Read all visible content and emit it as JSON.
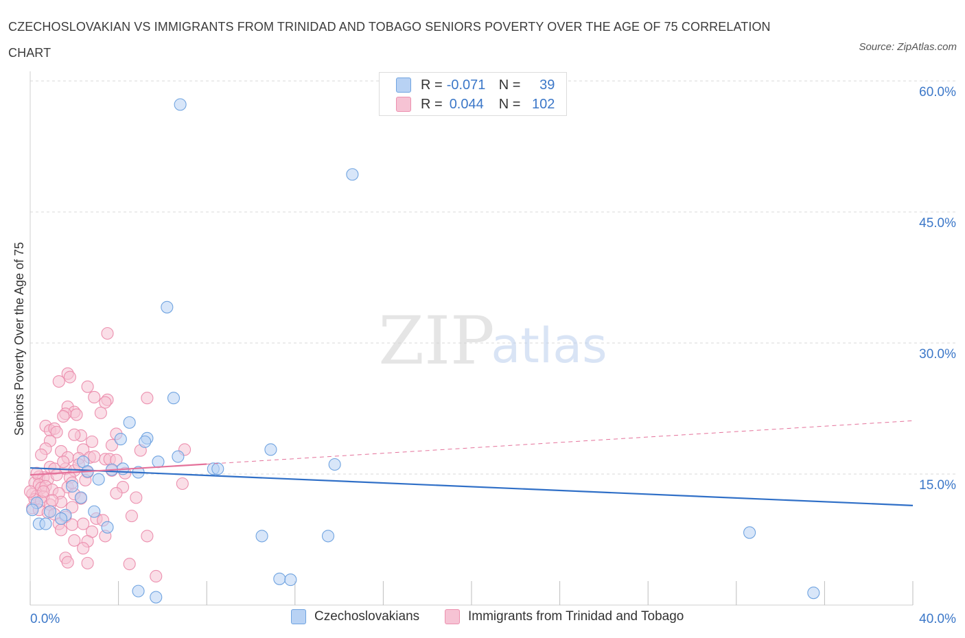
{
  "title": "CZECHOSLOVAKIAN VS IMMIGRANTS FROM TRINIDAD AND TOBAGO SENIORS POVERTY OVER THE AGE OF 75 CORRELATION CHART",
  "source": "Source: ZipAtlas.com",
  "watermark": {
    "zip": "ZIP",
    "atlas": "atlas"
  },
  "legend": {
    "row1": {
      "r_label": "R =",
      "r_value": "-0.071",
      "n_label": "N =",
      "n_value": "39"
    },
    "row2": {
      "r_label": "R =",
      "r_value": "0.044",
      "n_label": "N =",
      "n_value": "102"
    }
  },
  "colors": {
    "blue": "#6fa3e0",
    "blue_fill": "#b8d2f4",
    "blue_line": "#2f6fc7",
    "pink": "#ec8fae",
    "pink_fill": "#f6c3d4",
    "pink_line": "#e4719a",
    "axis_label": "#3b77c8"
  },
  "chart_data": {
    "type": "scatter",
    "xlabel": "",
    "ylabel": "Seniors Poverty Over the Age of 75",
    "xlim": [
      0,
      40
    ],
    "ylim": [
      0,
      60
    ],
    "x_tick_labels": [
      "0.0%",
      "40.0%"
    ],
    "y_ticks": [
      15,
      30,
      45,
      60
    ],
    "y_tick_labels": [
      "15.0%",
      "30.0%",
      "45.0%",
      "60.0%"
    ],
    "series": [
      {
        "name": "Czechoslovakians",
        "r": -0.071,
        "n": 39,
        "trend": {
          "x0": 0,
          "y0": 15.7,
          "x1": 40,
          "y1": 11.4,
          "dashed_from": null
        },
        "points": [
          [
            6.8,
            57.3
          ],
          [
            14.6,
            49.3
          ],
          [
            6.2,
            34.1
          ],
          [
            6.5,
            23.7
          ],
          [
            4.5,
            20.9
          ],
          [
            4.1,
            19.0
          ],
          [
            5.3,
            19.1
          ],
          [
            5.2,
            18.7
          ],
          [
            6.7,
            17.0
          ],
          [
            10.9,
            17.8
          ],
          [
            5.8,
            16.4
          ],
          [
            2.4,
            16.4
          ],
          [
            4.2,
            15.6
          ],
          [
            4.9,
            15.2
          ],
          [
            3.7,
            15.5
          ],
          [
            8.3,
            15.6
          ],
          [
            8.5,
            15.6
          ],
          [
            13.8,
            16.1
          ],
          [
            2.6,
            15.3
          ],
          [
            3.1,
            14.4
          ],
          [
            1.9,
            13.6
          ],
          [
            2.3,
            12.3
          ],
          [
            0.3,
            11.7
          ],
          [
            1.6,
            10.3
          ],
          [
            0.1,
            10.9
          ],
          [
            0.9,
            10.7
          ],
          [
            1.4,
            9.9
          ],
          [
            2.9,
            10.7
          ],
          [
            0.4,
            9.3
          ],
          [
            0.7,
            9.3
          ],
          [
            3.5,
            8.9
          ],
          [
            10.5,
            7.9
          ],
          [
            13.5,
            7.9
          ],
          [
            32.6,
            8.3
          ],
          [
            11.3,
            3.0
          ],
          [
            11.8,
            2.9
          ],
          [
            4.9,
            1.6
          ],
          [
            5.7,
            0.9
          ],
          [
            35.5,
            1.4
          ]
        ]
      },
      {
        "name": "Immigrants from Trinidad and Tobago",
        "r": 0.044,
        "n": 102,
        "trend": {
          "x0": 0,
          "y0": 14.9,
          "x1": 40,
          "y1": 21.1,
          "dashed_from": 8.0
        },
        "points": [
          [
            3.5,
            31.1
          ],
          [
            1.7,
            26.5
          ],
          [
            1.8,
            26.1
          ],
          [
            1.3,
            25.6
          ],
          [
            2.6,
            25.0
          ],
          [
            5.3,
            23.7
          ],
          [
            2.9,
            23.8
          ],
          [
            3.5,
            23.5
          ],
          [
            3.4,
            23.2
          ],
          [
            1.7,
            22.7
          ],
          [
            2.0,
            22.1
          ],
          [
            1.6,
            21.9
          ],
          [
            3.2,
            22.0
          ],
          [
            1.5,
            21.6
          ],
          [
            2.1,
            21.8
          ],
          [
            0.7,
            20.5
          ],
          [
            0.9,
            20.0
          ],
          [
            1.1,
            20.2
          ],
          [
            1.2,
            19.8
          ],
          [
            2.3,
            19.4
          ],
          [
            2.0,
            19.5
          ],
          [
            3.9,
            19.6
          ],
          [
            0.9,
            18.8
          ],
          [
            2.8,
            18.7
          ],
          [
            3.7,
            18.3
          ],
          [
            0.7,
            17.9
          ],
          [
            1.4,
            17.6
          ],
          [
            2.4,
            17.8
          ],
          [
            5.0,
            17.7
          ],
          [
            7.0,
            17.8
          ],
          [
            0.5,
            17.2
          ],
          [
            1.7,
            16.9
          ],
          [
            2.2,
            16.8
          ],
          [
            2.7,
            16.9
          ],
          [
            3.4,
            16.7
          ],
          [
            3.6,
            16.7
          ],
          [
            3.9,
            16.6
          ],
          [
            0.9,
            15.8
          ],
          [
            1.1,
            15.6
          ],
          [
            1.6,
            15.6
          ],
          [
            2.0,
            15.4
          ],
          [
            2.6,
            15.2
          ],
          [
            3.7,
            15.4
          ],
          [
            4.3,
            15.1
          ],
          [
            0.4,
            14.7
          ],
          [
            0.6,
            14.6
          ],
          [
            0.8,
            14.4
          ],
          [
            1.2,
            14.9
          ],
          [
            1.8,
            14.6
          ],
          [
            2.5,
            14.3
          ],
          [
            0.2,
            14.0
          ],
          [
            0.4,
            13.8
          ],
          [
            0.5,
            13.4
          ],
          [
            0.7,
            13.6
          ],
          [
            1.0,
            13.2
          ],
          [
            1.7,
            13.5
          ],
          [
            4.2,
            13.5
          ],
          [
            6.9,
            13.9
          ],
          [
            0.1,
            12.7
          ],
          [
            0.3,
            12.5
          ],
          [
            0.6,
            12.4
          ],
          [
            1.3,
            12.8
          ],
          [
            2.0,
            12.7
          ],
          [
            3.9,
            12.8
          ],
          [
            4.8,
            12.3
          ],
          [
            0.2,
            12.1
          ],
          [
            0.5,
            11.9
          ],
          [
            0.9,
            11.5
          ],
          [
            1.4,
            11.8
          ],
          [
            2.3,
            12.2
          ],
          [
            0.1,
            11.1
          ],
          [
            0.4,
            10.9
          ],
          [
            0.8,
            10.6
          ],
          [
            1.1,
            10.4
          ],
          [
            1.9,
            11.2
          ],
          [
            3.0,
            9.9
          ],
          [
            3.3,
            9.7
          ],
          [
            4.6,
            10.2
          ],
          [
            1.6,
            10.1
          ],
          [
            1.3,
            9.3
          ],
          [
            1.9,
            9.2
          ],
          [
            2.4,
            9.3
          ],
          [
            1.4,
            8.6
          ],
          [
            2.8,
            8.4
          ],
          [
            3.4,
            7.9
          ],
          [
            5.3,
            7.9
          ],
          [
            2.0,
            7.4
          ],
          [
            2.6,
            7.3
          ],
          [
            2.4,
            6.5
          ],
          [
            1.6,
            5.4
          ],
          [
            1.7,
            4.9
          ],
          [
            2.6,
            4.8
          ],
          [
            4.5,
            4.7
          ],
          [
            5.7,
            3.3
          ],
          [
            0.0,
            13.0
          ],
          [
            0.3,
            15.1
          ],
          [
            1.5,
            16.4
          ],
          [
            2.9,
            17.0
          ],
          [
            2.2,
            16.1
          ],
          [
            0.6,
            13.0
          ],
          [
            1.0,
            12.0
          ],
          [
            1.9,
            14.0
          ]
        ]
      }
    ]
  }
}
